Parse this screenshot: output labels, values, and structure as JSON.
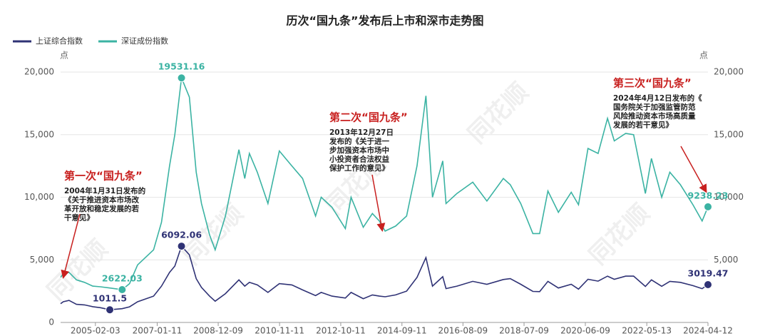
{
  "chart_data": {
    "type": "line",
    "title": "历次“国九条”发布后上市和深市走势图",
    "y_unit": "点",
    "watermark": "同花顺",
    "x": [
      "2004-01-02",
      "2004-02-01",
      "2004-04-07",
      "2004-07-01",
      "2004-10-01",
      "2005-01-04",
      "2005-04-01",
      "2005-07-18",
      "2005-12-06",
      "2006-03-01",
      "2006-06-01",
      "2006-12-01",
      "2007-03-01",
      "2007-06-01",
      "2007-08-01",
      "2007-10-16",
      "2008-01-14",
      "2008-04-01",
      "2008-06-01",
      "2008-09-01",
      "2008-11-04",
      "2009-03-02",
      "2009-08-03",
      "2009-10-09",
      "2009-12-01",
      "2010-03-01",
      "2010-07-01",
      "2010-11-08",
      "2011-04-01",
      "2011-08-01",
      "2011-12-28",
      "2012-03-01",
      "2012-07-02",
      "2012-12-03",
      "2013-02-06",
      "2013-06-25",
      "2013-10-08",
      "2013-12-27",
      "2014-03-03",
      "2014-07-01",
      "2014-11-03",
      "2015-03-02",
      "2015-06-12",
      "2015-08-26",
      "2015-12-22",
      "2016-01-28",
      "2016-06-01",
      "2016-11-29",
      "2017-05-10",
      "2017-11-14",
      "2018-02-01",
      "2018-06-01",
      "2018-10-18",
      "2019-01-03",
      "2019-04-08",
      "2019-08-06",
      "2019-12-31",
      "2020-03-23",
      "2020-07-09",
      "2020-11-02",
      "2021-02-18",
      "2021-05-06",
      "2021-09-14",
      "2021-12-13",
      "2022-04-27",
      "2022-07-05",
      "2022-10-31",
      "2023-02-01",
      "2023-06-01",
      "2023-10-23",
      "2024-02-05",
      "2024-04-12"
    ],
    "series": [
      {
        "name": "上证综合指数",
        "color": "#2f3275",
        "axis": "y",
        "values": [
          1500,
          1650,
          1760,
          1450,
          1400,
          1260,
          1180,
          1011.5,
          1100,
          1250,
          1650,
          2100,
          2900,
          4000,
          4500,
          6092.06,
          5400,
          3500,
          2800,
          2100,
          1700,
          2300,
          3400,
          2900,
          3200,
          3000,
          2400,
          3100,
          3000,
          2600,
          2150,
          2400,
          2100,
          1950,
          2400,
          1900,
          2200,
          2100,
          2050,
          2200,
          2500,
          3600,
          5178,
          2900,
          3650,
          2700,
          2900,
          3280,
          3050,
          3430,
          3500,
          3050,
          2480,
          2460,
          3280,
          2750,
          3050,
          2660,
          3450,
          3300,
          3700,
          3450,
          3700,
          3700,
          2880,
          3400,
          2890,
          3280,
          3200,
          2940,
          2700,
          3019.47
        ]
      },
      {
        "name": "深证成份指数",
        "color": "#3bb3a3",
        "axis": "y2",
        "values": [
          3600,
          3900,
          4000,
          3400,
          3200,
          2900,
          2850,
          2750,
          2622.03,
          3100,
          4600,
          5800,
          8000,
          12500,
          15000,
          19531.16,
          18000,
          12000,
          9500,
          7000,
          5800,
          8500,
          13800,
          11500,
          13500,
          12000,
          9500,
          13700,
          12500,
          11500,
          8500,
          10000,
          9200,
          7500,
          10000,
          7600,
          8700,
          8100,
          7300,
          7700,
          8500,
          12500,
          18100,
          10000,
          12900,
          9500,
          10300,
          11200,
          9700,
          11500,
          11000,
          9500,
          7100,
          7100,
          10500,
          8800,
          10400,
          9400,
          13900,
          13500,
          16300,
          14500,
          15100,
          15000,
          10300,
          13100,
          10000,
          12000,
          11000,
          9400,
          8100,
          9238.23
        ]
      }
    ],
    "xlim": [
      "2004-01-02",
      "2024-04-12"
    ],
    "xticks": [
      "2005-02-03",
      "2007-01-11",
      "2008-12-09",
      "2010-11-11",
      "2012-10-11",
      "2014-09-11",
      "2016-08-09",
      "2018-07-09",
      "2020-06-09",
      "2022-05-13",
      "2024-04-12"
    ],
    "ylim": [
      0,
      20000
    ],
    "yticks": [
      0,
      {
        "value": 5000,
        "label": "5,000"
      },
      {
        "value": 10000,
        "label": "10,000"
      },
      {
        "value": 15000,
        "label": "15,000"
      },
      {
        "value": 20000,
        "label": "20,000"
      }
    ],
    "y2lim": [
      0,
      20000
    ],
    "y2ticks": [
      {
        "value": 5000,
        "label": "5,000"
      },
      {
        "value": 10000,
        "label": "10,000"
      },
      {
        "value": 15000,
        "label": "15,000"
      },
      {
        "value": 20000,
        "label": "20,000"
      }
    ],
    "grid": true,
    "annotations": [
      {
        "title": "第一次“国九条”",
        "lines": [
          "2004年1月31日发布的",
          "《关于推进资本市场改",
          "革开放和稳定发展的若",
          "干意见》"
        ]
      },
      {
        "title": "第二次“国九条”",
        "lines": [
          "2013年12月27日",
          "发布的《关于进一",
          "步加强资本市场中",
          "小投资者合法权益",
          "保护工作的意见》"
        ]
      },
      {
        "title": "第三次“国九条”",
        "lines": [
          "2024年4月12日发布的《",
          "国务院关于加强监管防范",
          "风险推动资本市场高质量",
          "发展的若干意见》"
        ]
      }
    ]
  }
}
